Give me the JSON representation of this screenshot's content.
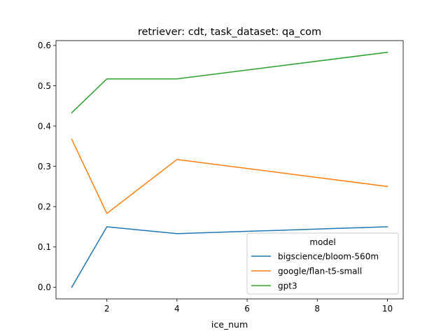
{
  "chart_data": {
    "type": "line",
    "title": "retriever: cdt, task_dataset: qa_com",
    "xlabel": "ice_num",
    "ylabel": "",
    "x": [
      1,
      2,
      4,
      10
    ],
    "xlim": [
      0.55,
      10.45
    ],
    "ylim": [
      -0.029,
      0.612
    ],
    "xticks": [
      2,
      4,
      6,
      8,
      10
    ],
    "yticks": [
      0.0,
      0.1,
      0.2,
      0.3,
      0.4,
      0.5,
      0.6
    ],
    "ytick_labels": [
      "0.0",
      "0.1",
      "0.2",
      "0.3",
      "0.4",
      "0.5",
      "0.6"
    ],
    "grid": false,
    "legend": {
      "title": "model",
      "placement": "lower-right"
    },
    "series": [
      {
        "name": "bigscience/bloom-560m",
        "color": "#1f77b4",
        "values": [
          0.0,
          0.15,
          0.133,
          0.15
        ]
      },
      {
        "name": "google/flan-t5-small",
        "color": "#ff7f0e",
        "values": [
          0.367,
          0.183,
          0.317,
          0.25
        ]
      },
      {
        "name": "gpt3",
        "color": "#2ca02c",
        "values": [
          0.433,
          0.517,
          0.517,
          0.583
        ]
      }
    ]
  }
}
